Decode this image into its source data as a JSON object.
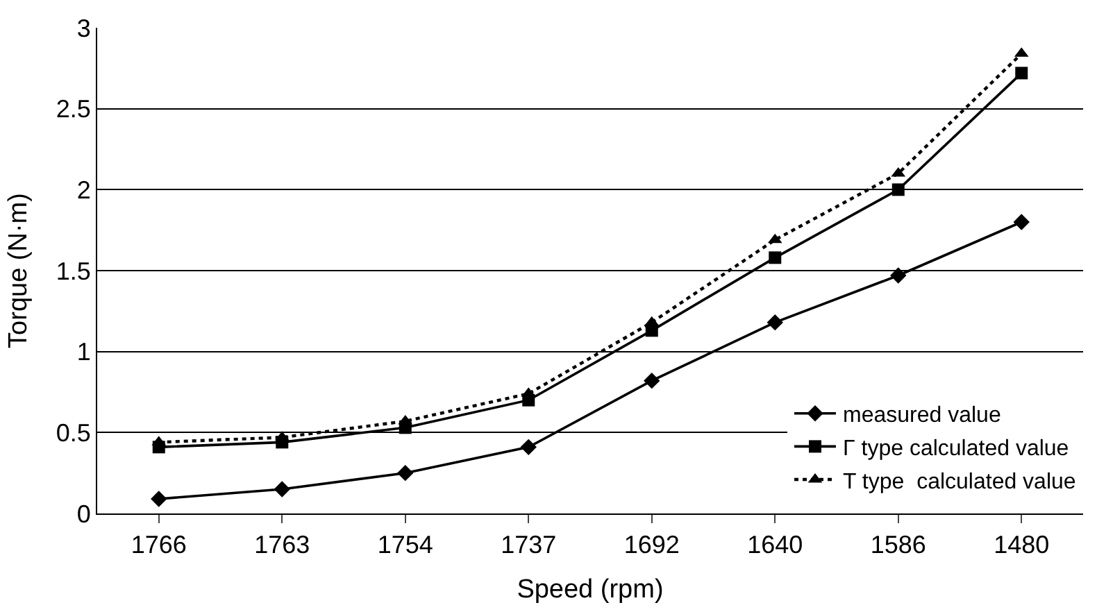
{
  "chart_data": {
    "type": "line",
    "xlabel": "Speed (rpm)",
    "ylabel": "Torque (N·m)",
    "categories": [
      "1766",
      "1763",
      "1754",
      "1737",
      "1692",
      "1640",
      "1586",
      "1480"
    ],
    "series": [
      {
        "name": "measured value",
        "color": "#000000",
        "marker": "diamond",
        "line_style": "solid",
        "values": [
          0.09,
          0.15,
          0.25,
          0.41,
          0.82,
          1.18,
          1.47,
          1.8
        ]
      },
      {
        "name": "Γ type calculated value",
        "color": "#000000",
        "marker": "square",
        "line_style": "solid",
        "values": [
          0.41,
          0.44,
          0.53,
          0.7,
          1.13,
          1.58,
          2.0,
          2.72
        ]
      },
      {
        "name": "T type  calculated value",
        "color": "#000000",
        "marker": "triangle",
        "line_style": "dotted",
        "values": [
          0.44,
          0.47,
          0.57,
          0.74,
          1.18,
          1.69,
          2.1,
          2.84
        ]
      }
    ],
    "ylim": [
      0,
      3
    ],
    "yticks": [
      0,
      0.5,
      1,
      1.5,
      2,
      2.5,
      3
    ],
    "grid": "y",
    "legend": "bottom right"
  }
}
